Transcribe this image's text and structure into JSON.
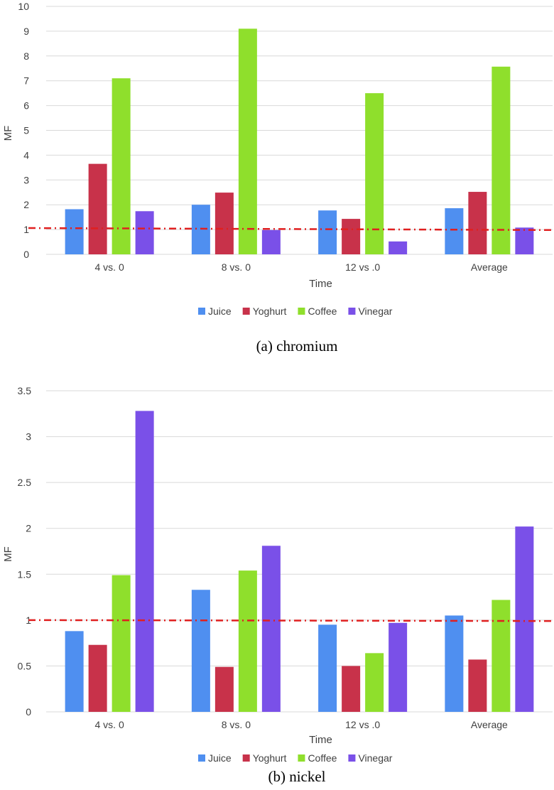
{
  "chart_data": [
    {
      "type": "bar",
      "caption": "(a) chromium",
      "categories": [
        "4 vs. 0",
        "8 vs. 0",
        "12 vs .0",
        "Average"
      ],
      "series": [
        {
          "name": "Juice",
          "color": "#4f8ff0",
          "values": [
            1.82,
            2.0,
            1.77,
            1.86
          ]
        },
        {
          "name": "Yoghurt",
          "color": "#c8324a",
          "values": [
            3.65,
            2.49,
            1.43,
            2.52
          ]
        },
        {
          "name": "Coffee",
          "color": "#8fdf2c",
          "values": [
            7.1,
            9.1,
            6.5,
            7.57
          ]
        },
        {
          "name": "Vinegar",
          "color": "#7a50e8",
          "values": [
            1.74,
            0.98,
            0.52,
            1.08
          ]
        }
      ],
      "xlabel": "Time",
      "ylabel": "MF",
      "ylim": [
        0,
        10
      ],
      "yticks": [
        "0",
        "1",
        "2",
        "3",
        "4",
        "5",
        "6",
        "7",
        "8",
        "9",
        "10"
      ],
      "reference_line": {
        "value": 1.0,
        "color": "#e02020",
        "style": "dash-dot"
      },
      "legend_position": "bottom"
    },
    {
      "type": "bar",
      "caption": "(b) nickel",
      "categories": [
        "4 vs. 0",
        "8 vs. 0",
        "12 vs .0",
        "Average"
      ],
      "series": [
        {
          "name": "Juice",
          "color": "#4f8ff0",
          "values": [
            0.88,
            1.33,
            0.95,
            1.05
          ]
        },
        {
          "name": "Yoghurt",
          "color": "#c8324a",
          "values": [
            0.73,
            0.49,
            0.5,
            0.57
          ]
        },
        {
          "name": "Coffee",
          "color": "#8fdf2c",
          "values": [
            1.49,
            1.54,
            0.64,
            1.22
          ]
        },
        {
          "name": "Vinegar",
          "color": "#7a50e8",
          "values": [
            3.28,
            1.81,
            0.97,
            2.02
          ]
        }
      ],
      "xlabel": "Time",
      "ylabel": "MF",
      "ylim": [
        0,
        3.5
      ],
      "yticks": [
        "0",
        "0.5",
        "1",
        "1.5",
        "2",
        "2.5",
        "3",
        "3.5"
      ],
      "reference_line": {
        "value": 1.0,
        "color": "#e02020",
        "style": "dash-dot"
      },
      "legend_position": "bottom"
    }
  ]
}
